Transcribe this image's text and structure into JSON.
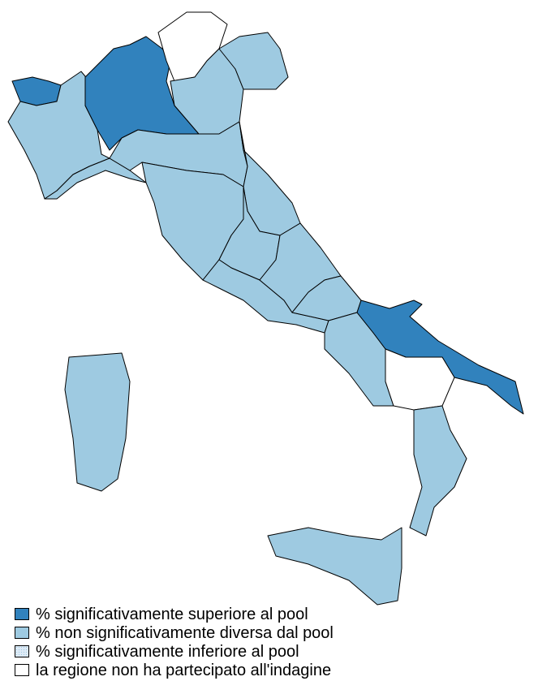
{
  "colors": {
    "superiore": "#3182bd",
    "non_diversa": "#9ecae1",
    "inferiore": "#deebf7",
    "non_partecipato": "#ffffff"
  },
  "legend": [
    {
      "key": "superiore",
      "label": "% significativamente superiore al pool"
    },
    {
      "key": "non_diversa",
      "label": "% non significativamente diversa dal pool"
    },
    {
      "key": "inferiore",
      "label": "% significativamente inferiore al pool"
    },
    {
      "key": "non_partecipato",
      "label": "la regione non ha partecipato all'indagine"
    }
  ],
  "regions": [
    {
      "id": "valle-daosta",
      "category": "superiore"
    },
    {
      "id": "piemonte",
      "category": "non_diversa"
    },
    {
      "id": "lombardia",
      "category": "superiore"
    },
    {
      "id": "trentino-alto-adige",
      "category": "non_partecipato"
    },
    {
      "id": "veneto",
      "category": "non_diversa"
    },
    {
      "id": "friuli-venezia-giulia",
      "category": "non_diversa"
    },
    {
      "id": "liguria",
      "category": "non_diversa"
    },
    {
      "id": "emilia-romagna",
      "category": "non_diversa"
    },
    {
      "id": "toscana",
      "category": "non_diversa"
    },
    {
      "id": "marche",
      "category": "non_diversa"
    },
    {
      "id": "umbria",
      "category": "non_diversa"
    },
    {
      "id": "lazio",
      "category": "non_diversa"
    },
    {
      "id": "abruzzo",
      "category": "non_diversa"
    },
    {
      "id": "molise",
      "category": "non_diversa"
    },
    {
      "id": "campania",
      "category": "non_diversa"
    },
    {
      "id": "puglia",
      "category": "superiore"
    },
    {
      "id": "basilicata",
      "category": "non_partecipato"
    },
    {
      "id": "calabria",
      "category": "non_diversa"
    },
    {
      "id": "sicilia",
      "category": "non_diversa"
    },
    {
      "id": "sardegna",
      "category": "non_diversa"
    }
  ]
}
